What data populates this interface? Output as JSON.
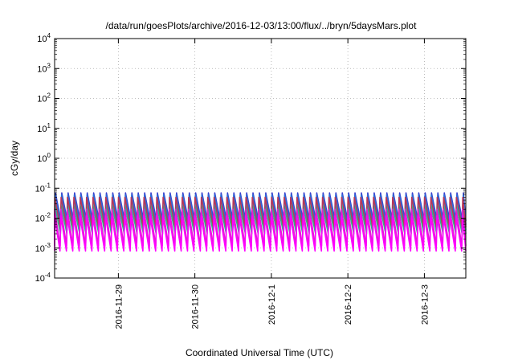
{
  "chart_data": {
    "type": "line",
    "title": "/data/run/goesPlots/archive/2016-12-03/13:00/flux/../bryn/5daysMars.plot",
    "xlabel": "Coordinated Universal Time (UTC)",
    "ylabel": "cGy/day",
    "y_scale": "log",
    "ylim_exp": [
      -4,
      4
    ],
    "y_ticks": [
      {
        "base": "10",
        "exp": "-4"
      },
      {
        "base": "10",
        "exp": "-3"
      },
      {
        "base": "10",
        "exp": "-2"
      },
      {
        "base": "10",
        "exp": "-1"
      },
      {
        "base": "10",
        "exp": "0"
      },
      {
        "base": "10",
        "exp": "1"
      },
      {
        "base": "10",
        "exp": "2"
      },
      {
        "base": "10",
        "exp": "3"
      },
      {
        "base": "10",
        "exp": "4"
      }
    ],
    "x_range_days": [
      "2016-11-28 04:00",
      "2016-12-03 13:00"
    ],
    "x_ticks": [
      "2016-11-29",
      "2016-11-30",
      "2016-12-1",
      "2016-12-2",
      "2016-12-3"
    ],
    "grid": true,
    "legend": "none",
    "sawtooth_period_hours": 2,
    "series": [
      {
        "color": "#3a3fcf",
        "peak": 0.07,
        "trough": 0.008
      },
      {
        "color": "#2a6fd6",
        "peak": 0.06,
        "trough": 0.006
      },
      {
        "color": "#20c9d6",
        "peak": 0.035,
        "trough": 0.004
      },
      {
        "color": "#2fb28a",
        "peak": 0.025,
        "trough": 0.003
      },
      {
        "color": "#b8365a",
        "peak": 0.05,
        "trough": 0.005
      },
      {
        "color": "#e020d0",
        "peak": 0.02,
        "trough": 0.0012
      },
      {
        "color": "#ff00ff",
        "peak": 0.012,
        "trough": 0.0008
      }
    ]
  }
}
